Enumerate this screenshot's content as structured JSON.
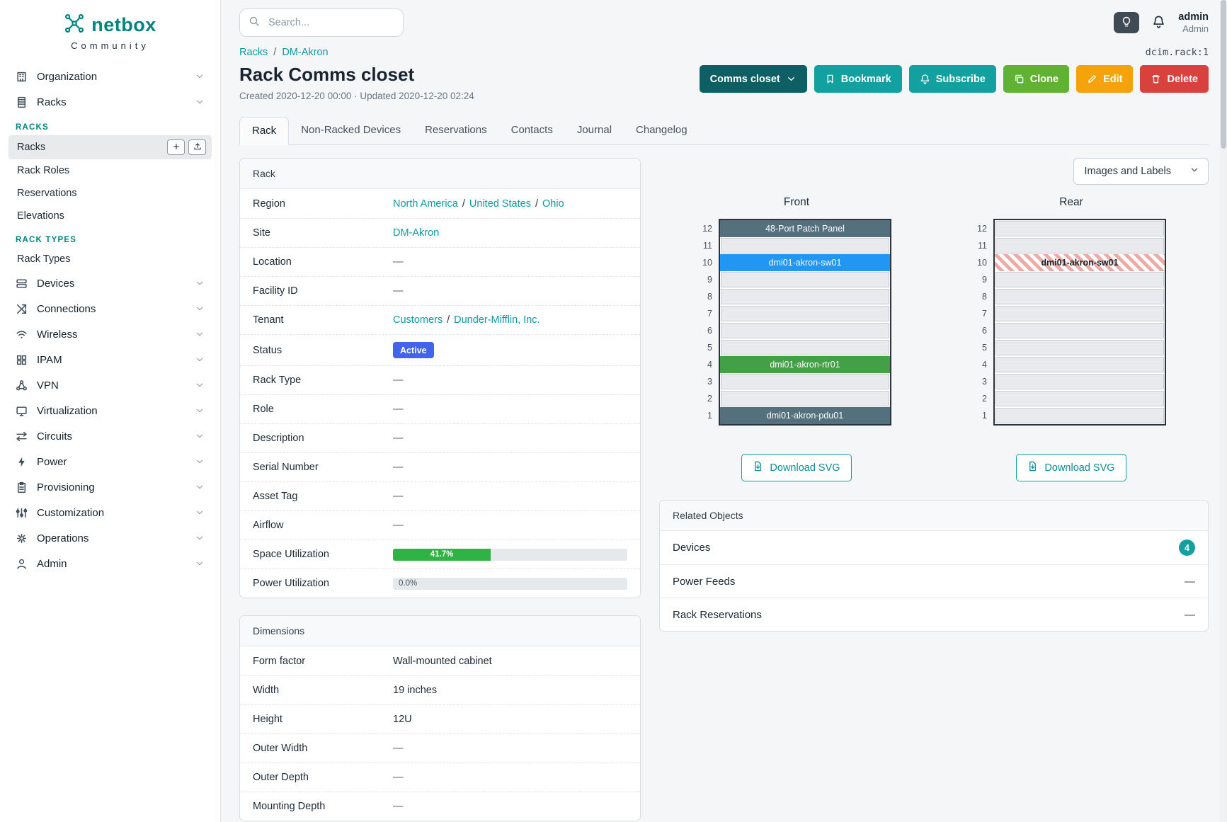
{
  "colors": {
    "brand_teal": "#00857e",
    "link_teal": "#0d9aa2",
    "button_teal": "#12a0a0",
    "button_dark_teal": "#0d5f63",
    "button_green": "#61b232",
    "button_orange": "#f5a30b",
    "button_red": "#d9413d",
    "status_active_blue": "#4263eb",
    "progress_green": "#2fb344",
    "device_slate": "#54707d",
    "device_blue": "#2196f3",
    "device_green": "#43a047",
    "hatch_red": "#eeaaa4"
  },
  "brand": {
    "name": "netbox",
    "tagline": "Community"
  },
  "topbar": {
    "search_placeholder": "Search...",
    "user_name": "admin",
    "user_role": "Admin"
  },
  "sidebar": {
    "entries": [
      {
        "kind": "item",
        "label": "Organization",
        "icon": "building-icon",
        "shape": "building"
      },
      {
        "kind": "item",
        "label": "Racks",
        "icon": "rack-icon",
        "shape": "rack",
        "expanded": true
      },
      {
        "kind": "section",
        "label": "RACKS"
      },
      {
        "kind": "subitem",
        "label": "Racks",
        "active": true,
        "actions": true
      },
      {
        "kind": "subitem",
        "label": "Rack Roles"
      },
      {
        "kind": "subitem",
        "label": "Reservations"
      },
      {
        "kind": "subitem",
        "label": "Elevations"
      },
      {
        "kind": "section",
        "label": "RACK TYPES"
      },
      {
        "kind": "subitem",
        "label": "Rack Types"
      },
      {
        "kind": "item",
        "label": "Devices",
        "icon": "devices-icon",
        "shape": "devices"
      },
      {
        "kind": "item",
        "label": "Connections",
        "icon": "connections-icon",
        "shape": "connections"
      },
      {
        "kind": "item",
        "label": "Wireless",
        "icon": "wifi-icon",
        "shape": "wifi"
      },
      {
        "kind": "item",
        "label": "IPAM",
        "icon": "ipam-icon",
        "shape": "ipam"
      },
      {
        "kind": "item",
        "label": "VPN",
        "icon": "vpn-icon",
        "shape": "vpn"
      },
      {
        "kind": "item",
        "label": "Virtualization",
        "icon": "virtualization-icon",
        "shape": "virtualization"
      },
      {
        "kind": "item",
        "label": "Circuits",
        "icon": "circuits-icon",
        "shape": "circuits"
      },
      {
        "kind": "item",
        "label": "Power",
        "icon": "power-icon",
        "shape": "power"
      },
      {
        "kind": "item",
        "label": "Provisioning",
        "icon": "provisioning-icon",
        "shape": "provisioning"
      },
      {
        "kind": "item",
        "label": "Customization",
        "icon": "customization-icon",
        "shape": "customization"
      },
      {
        "kind": "item",
        "label": "Operations",
        "icon": "operations-icon",
        "shape": "operations"
      },
      {
        "kind": "item",
        "label": "Admin",
        "icon": "admin-icon",
        "shape": "admin"
      }
    ]
  },
  "breadcrumb": {
    "links": [
      "Racks",
      "DM-Akron"
    ],
    "object_id": "dcim.rack:1"
  },
  "page": {
    "title": "Rack Comms closet",
    "meta": "Created 2020-12-20 00:00 · Updated 2020-12-20 02:24"
  },
  "actions": [
    {
      "label": "Comms closet",
      "style": "dark-teal",
      "icon_after": "chevron"
    },
    {
      "label": "Bookmark",
      "style": "teal",
      "icon": "bookmark"
    },
    {
      "label": "Subscribe",
      "style": "teal",
      "icon": "bell"
    },
    {
      "label": "Clone",
      "style": "green",
      "icon": "copy"
    },
    {
      "label": "Edit",
      "style": "orange",
      "icon": "pencil"
    },
    {
      "label": "Delete",
      "style": "red",
      "icon": "trash"
    }
  ],
  "tabs": [
    {
      "label": "Rack",
      "active": true
    },
    {
      "label": "Non-Racked Devices"
    },
    {
      "label": "Reservations"
    },
    {
      "label": "Contacts"
    },
    {
      "label": "Journal"
    },
    {
      "label": "Changelog"
    }
  ],
  "rack_card": {
    "title": "Rack",
    "rows": [
      {
        "label": "Region",
        "type": "links",
        "links": [
          "North America",
          "United States",
          "Ohio"
        ]
      },
      {
        "label": "Site",
        "type": "links",
        "links": [
          "DM-Akron"
        ]
      },
      {
        "label": "Location",
        "type": "text",
        "value": "—"
      },
      {
        "label": "Facility ID",
        "type": "text",
        "value": "—"
      },
      {
        "label": "Tenant",
        "type": "links",
        "links": [
          "Customers",
          "Dunder-Mifflin, Inc."
        ]
      },
      {
        "label": "Status",
        "type": "badge",
        "value": "Active"
      },
      {
        "label": "Rack Type",
        "type": "text",
        "value": "—"
      },
      {
        "label": "Role",
        "type": "text",
        "value": "—"
      },
      {
        "label": "Description",
        "type": "text",
        "value": "—"
      },
      {
        "label": "Serial Number",
        "type": "text",
        "value": "—"
      },
      {
        "label": "Asset Tag",
        "type": "text",
        "value": "—"
      },
      {
        "label": "Airflow",
        "type": "text",
        "value": "—"
      },
      {
        "label": "Space Utilization",
        "type": "progress",
        "percent": 41.7,
        "text": "41.7%",
        "variant": "green"
      },
      {
        "label": "Power Utilization",
        "type": "progress",
        "percent": 0,
        "text": "0.0%",
        "variant": "empty"
      }
    ]
  },
  "dimensions_card": {
    "title": "Dimensions",
    "rows": [
      {
        "label": "Form factor",
        "value": "Wall-mounted cabinet"
      },
      {
        "label": "Width",
        "value": "19 inches"
      },
      {
        "label": "Height",
        "value": "12U"
      },
      {
        "label": "Outer Width",
        "value": "—"
      },
      {
        "label": "Outer Depth",
        "value": "—"
      },
      {
        "label": "Mounting Depth",
        "value": "—"
      }
    ]
  },
  "elevations": {
    "display_select": "Images and Labels",
    "download_label": "Download SVG",
    "top_unit": 12,
    "bottom_unit": 1,
    "front": {
      "title": "Front",
      "devices": [
        {
          "unit": 12,
          "label": "48-Port Patch Panel",
          "color": "slate"
        },
        {
          "unit": 10,
          "label": "dmi01-akron-sw01",
          "color": "blue"
        },
        {
          "unit": 4,
          "label": "dmi01-akron-rtr01",
          "color": "green"
        },
        {
          "unit": 1,
          "label": "dmi01-akron-pdu01",
          "color": "slate"
        }
      ]
    },
    "rear": {
      "title": "Rear",
      "devices": [
        {
          "unit": 10,
          "label": "dmi01-akron-sw01",
          "color": "hatched"
        }
      ]
    }
  },
  "related_objects": {
    "title": "Related Objects",
    "rows": [
      {
        "label": "Devices",
        "count": "4"
      },
      {
        "label": "Power Feeds",
        "value": "—"
      },
      {
        "label": "Rack Reservations",
        "value": "—"
      }
    ]
  }
}
